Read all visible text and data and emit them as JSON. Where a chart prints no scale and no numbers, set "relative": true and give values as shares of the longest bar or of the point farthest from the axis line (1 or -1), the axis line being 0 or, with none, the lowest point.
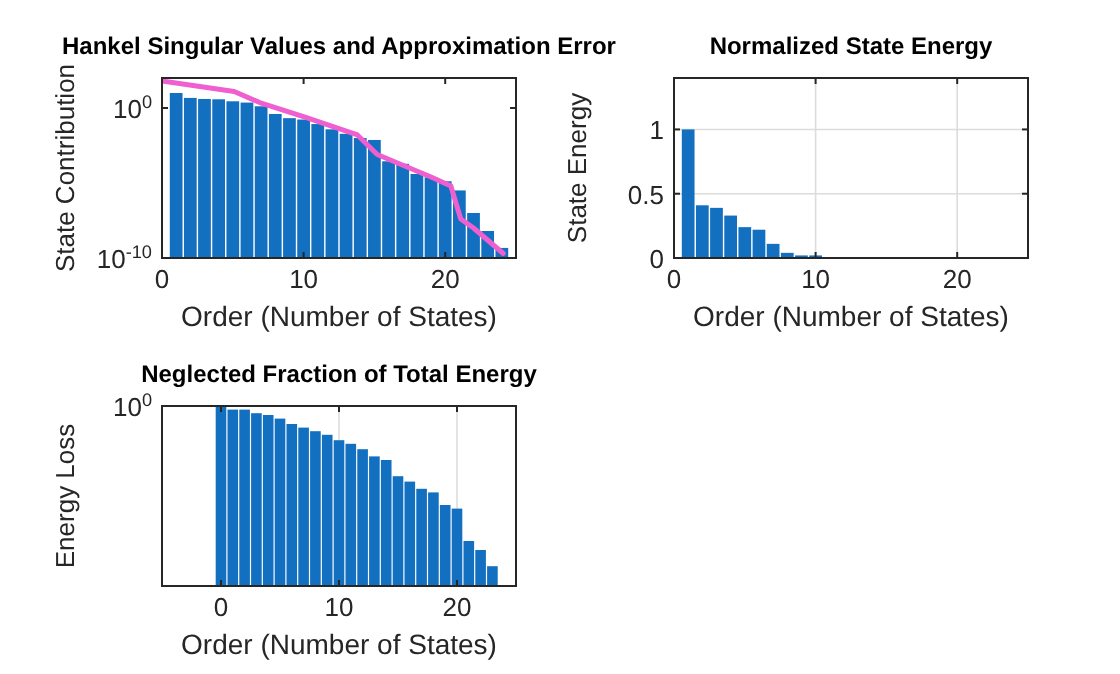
{
  "chart_data": [
    {
      "type": "bar",
      "title": "Hankel Singular Values and Approximation Error",
      "xlabel": "Order (Number of States)",
      "ylabel": "State Contribution",
      "log": true,
      "grid": false,
      "xlim": [
        0,
        25
      ],
      "xticks": [
        0,
        10,
        20
      ],
      "ylim": [
        1e-10,
        100
      ],
      "yticks": [
        {
          "value": 1,
          "label": "10$^{0}$"
        },
        {
          "value": 1e-10,
          "label": "10$^{-10}$"
        }
      ],
      "x": [
        1,
        2,
        3,
        4,
        5,
        6,
        7,
        8,
        9,
        10,
        11,
        12,
        13,
        14,
        15,
        16,
        17,
        18,
        19,
        20,
        21,
        22,
        23,
        24
      ],
      "series": [
        {
          "color": "#1370c1",
          "values": [
            10,
            4.7,
            4,
            3.8,
            2.8,
            2.3,
            1.3,
            0.4,
            0.21,
            0.17,
            0.085,
            0.038,
            0.019,
            0.01,
            0.0074,
            0.00028,
            0.00019,
            4e-05,
            2.4e-05,
            1.3e-05,
            3.2e-06,
            1e-07,
            6.3e-09,
            4.7e-10
          ]
        },
        {
          "type": "line",
          "color": "#ef5fd0",
          "x": [
            0,
            5.1,
            6.9,
            10.1,
            13.8,
            15.2,
            19,
            20.4,
            21.1,
            22,
            24.1
          ],
          "values": [
            63,
            12.6,
            2.3,
            0.25,
            0.016,
            0.00079,
            2.5e-05,
            6.3e-06,
            4e-08,
            1e-08,
            2e-10
          ]
        }
      ]
    },
    {
      "type": "bar",
      "title": "Normalized State Energy",
      "xlabel": "Order (Number of States)",
      "ylabel": "State Energy",
      "grid": true,
      "xlim": [
        0,
        25
      ],
      "xticks": [
        0,
        10,
        20
      ],
      "ylim": [
        0,
        1.4
      ],
      "yticks": [
        0,
        0.5,
        1
      ],
      "x": [
        1,
        2,
        3,
        4,
        5,
        6,
        7,
        8,
        9,
        10,
        11,
        12,
        13,
        14,
        15,
        16,
        17,
        18,
        19,
        20,
        21,
        22,
        23,
        24
      ],
      "series": [
        {
          "color": "#1370c1",
          "values": [
            1,
            0.41,
            0.39,
            0.33,
            0.24,
            0.22,
            0.11,
            0.04,
            0.02,
            0.02,
            0,
            0,
            0,
            0,
            0,
            0,
            0,
            0,
            0,
            0,
            0,
            0,
            0,
            0
          ]
        }
      ]
    },
    {
      "type": "bar",
      "title": "Neglected Fraction of Total Energy",
      "xlabel": "Order (Number of States)",
      "ylabel": "Energy Loss",
      "relative": true,
      "grid": "x",
      "xlim": [
        -5,
        25
      ],
      "xticks": [
        0,
        10,
        20
      ],
      "annotations": [
        "10$^{0}$"
      ],
      "x": [
        0,
        1,
        2,
        3,
        4,
        5,
        6,
        7,
        8,
        9,
        10,
        11,
        12,
        13,
        14,
        15,
        16,
        17,
        18,
        19,
        20,
        21,
        22,
        23
      ],
      "series": [
        {
          "color": "#1370c1",
          "values": [
            1,
            0.98,
            0.98,
            0.96,
            0.95,
            0.93,
            0.9,
            0.88,
            0.86,
            0.84,
            0.81,
            0.79,
            0.76,
            0.72,
            0.7,
            0.61,
            0.58,
            0.54,
            0.52,
            0.45,
            0.43,
            0.25,
            0.2,
            0.11
          ]
        }
      ]
    }
  ]
}
